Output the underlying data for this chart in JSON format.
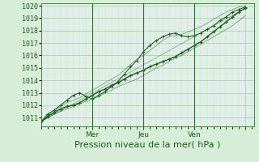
{
  "title": "",
  "xlabel": "Pression niveau de la mer( hPa )",
  "ylabel": "",
  "ylim": [
    1010.3,
    1020.2
  ],
  "xlim": [
    0,
    100
  ],
  "yticks": [
    1011,
    1012,
    1013,
    1014,
    1015,
    1016,
    1017,
    1018,
    1019,
    1020
  ],
  "xtick_positions": [
    24,
    48,
    72,
    96
  ],
  "xtick_labels": [
    "Mer",
    "Jeu",
    "Ven",
    ""
  ],
  "bg_color": "#d8eed8",
  "plot_bg_color": "#e0f0e8",
  "grid_color_major": "#a8c8a8",
  "grid_color_minor": "#c8dcc8",
  "line_color": "#1a5c1a",
  "hours": [
    0,
    3,
    6,
    9,
    12,
    15,
    18,
    21,
    24,
    27,
    30,
    33,
    36,
    39,
    42,
    45,
    48,
    51,
    54,
    57,
    60,
    63,
    66,
    69,
    72,
    75,
    78,
    81,
    84,
    87,
    90,
    93,
    96
  ],
  "main_line": [
    1010.7,
    1011.1,
    1011.4,
    1011.7,
    1011.9,
    1012.0,
    1012.2,
    1012.5,
    1012.8,
    1013.1,
    1013.3,
    1013.6,
    1013.8,
    1014.1,
    1014.4,
    1014.6,
    1014.8,
    1015.1,
    1015.3,
    1015.5,
    1015.7,
    1015.9,
    1016.2,
    1016.5,
    1016.8,
    1017.1,
    1017.5,
    1017.9,
    1018.3,
    1018.7,
    1019.1,
    1019.5,
    1019.8
  ],
  "upper_line": [
    1010.7,
    1011.2,
    1011.5,
    1011.9,
    1012.2,
    1012.4,
    1012.6,
    1012.9,
    1013.2,
    1013.5,
    1013.8,
    1014.1,
    1014.4,
    1014.8,
    1015.3,
    1015.7,
    1016.0,
    1016.4,
    1016.8,
    1017.2,
    1017.5,
    1017.6,
    1017.7,
    1017.9,
    1018.1,
    1018.3,
    1018.6,
    1018.9,
    1019.2,
    1019.5,
    1019.7,
    1019.9,
    1020.0
  ],
  "lower_line": [
    1010.7,
    1011.0,
    1011.3,
    1011.5,
    1011.7,
    1011.9,
    1012.1,
    1012.3,
    1012.5,
    1012.7,
    1013.0,
    1013.2,
    1013.5,
    1013.7,
    1013.9,
    1014.1,
    1014.4,
    1014.7,
    1015.0,
    1015.2,
    1015.5,
    1015.8,
    1016.0,
    1016.3,
    1016.6,
    1016.9,
    1017.2,
    1017.5,
    1017.8,
    1018.1,
    1018.4,
    1018.8,
    1019.2
  ],
  "wavy_line": [
    1010.7,
    1011.3,
    1011.6,
    1012.0,
    1012.4,
    1012.8,
    1013.0,
    1012.7,
    1012.5,
    1012.8,
    1013.1,
    1013.5,
    1013.9,
    1014.5,
    1015.1,
    1015.6,
    1016.3,
    1016.8,
    1017.2,
    1017.5,
    1017.7,
    1017.8,
    1017.6,
    1017.5,
    1017.6,
    1017.8,
    1018.1,
    1018.4,
    1018.8,
    1019.1,
    1019.5,
    1019.7,
    1019.9
  ],
  "trend_line": [
    [
      0,
      1010.7
    ],
    [
      96,
      1019.8
    ]
  ],
  "vline_positions": [
    24,
    48,
    72
  ],
  "day_start_x": 0,
  "label_fontsize": 6.5,
  "xlabel_fontsize": 8.0,
  "ytick_fontsize": 6.0
}
